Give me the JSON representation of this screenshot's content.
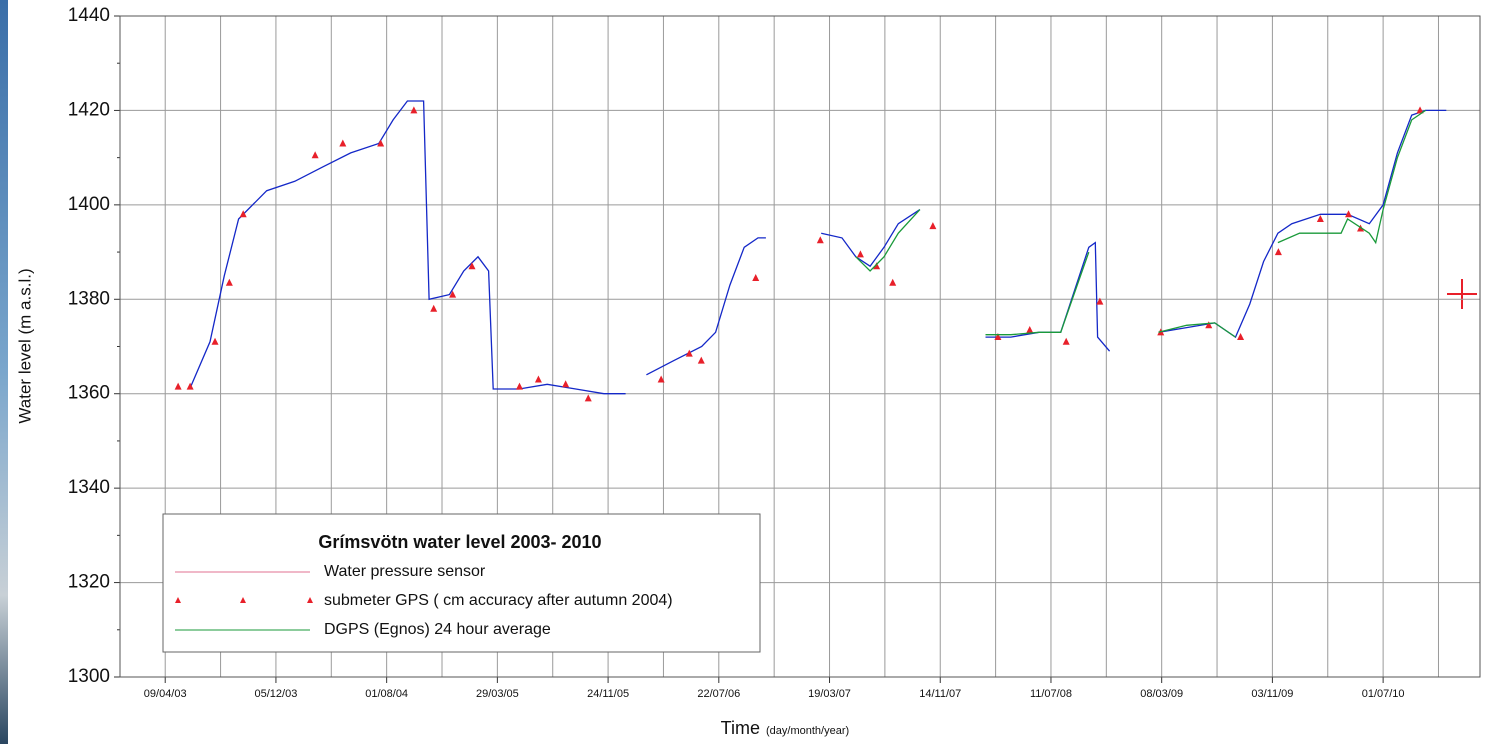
{
  "chart_data": {
    "type": "line",
    "y_label": "Water level (m a.s.l.)",
    "x_label": "Time",
    "x_label_note": "(day/month/year)",
    "legend_title": "Grímsvötn water level 2003- 2010",
    "ylim": [
      1300,
      1440
    ],
    "yticks": [
      1300,
      1320,
      1340,
      1360,
      1380,
      1400,
      1420,
      1440
    ],
    "xlim": [
      "01/01/03",
      "27/01/11"
    ],
    "xticks": [
      "09/04/03",
      "05/12/03",
      "01/08/04",
      "29/03/05",
      "24/11/05",
      "22/07/06",
      "19/03/07",
      "14/11/07",
      "11/07/08",
      "08/03/09",
      "03/11/09",
      "01/07/10"
    ],
    "grid": true,
    "series": [
      {
        "name": "Water pressure sensor",
        "kind": "line",
        "color": "#1428c8",
        "legend_color": "#e07090",
        "x": [
          "01/06/03",
          "15/07/03",
          "15/08/03",
          "15/09/03",
          "15/11/03",
          "15/01/04",
          "15/03/04",
          "15/05/04",
          "15/07/04",
          "15/08/04",
          "15/09/04",
          "20/10/04",
          "01/11/04",
          "15/12/04",
          "15/01/05",
          "15/02/05",
          "10/03/05",
          "20/03/05",
          "15/05/05",
          "15/07/05",
          "15/09/05",
          "15/11/05",
          "01/01/06",
          null,
          "15/02/06",
          "15/04/06",
          "15/06/06",
          "15/07/06",
          "15/08/06",
          "15/09/06",
          "15/10/06",
          "01/11/06",
          null,
          "01/03/07",
          "15/04/07",
          "15/05/07",
          "15/06/07",
          "15/07/07",
          "15/08/07",
          "01/10/07",
          null,
          "20/02/08",
          "15/04/08",
          "15/06/08",
          "01/08/08",
          "01/10/08",
          "15/10/08",
          "20/10/08",
          "15/11/08",
          null,
          "01/03/09",
          "01/05/09",
          "01/07/09",
          "15/08/09",
          "15/09/09",
          "15/10/09",
          "15/11/09",
          "15/12/09",
          "15/02/10",
          "15/04/10",
          "01/06/10",
          "01/07/10",
          "01/08/10",
          "01/09/10",
          "01/10/10",
          "15/11/10"
        ],
        "values": [
          1361,
          1371,
          1385,
          1397,
          1403,
          1405,
          1408,
          1411,
          1413,
          1418,
          1422,
          1422,
          1380,
          1381,
          1386,
          1389,
          1386,
          1361,
          1361,
          1362,
          1361,
          1360,
          1360,
          null,
          1364,
          1367,
          1370,
          1373,
          1383,
          1391,
          1393,
          1393,
          null,
          1394,
          1393,
          1389,
          1387,
          1391,
          1396,
          1399,
          null,
          1372,
          1372,
          1373,
          1373,
          1391,
          1392,
          1372,
          1369,
          null,
          1373,
          1374,
          1375,
          1372,
          1379,
          1388,
          1394,
          1396,
          1398,
          1398,
          1396,
          1400,
          1411,
          1419,
          1420,
          1420
        ]
      },
      {
        "name": "submeter GPS ( cm accuracy after autumn 2004)",
        "kind": "marker",
        "color": "#e8202a",
        "x": [
          "07/05/03",
          "02/06/03",
          "26/07/03",
          "26/08/03",
          "25/09/03",
          "28/02/04",
          "28/04/04",
          "19/07/04",
          "29/09/04",
          "11/11/04",
          "22/12/04",
          "02/02/05",
          "16/05/05",
          "26/06/05",
          "24/08/05",
          "12/10/05",
          "19/03/06",
          "19/05/06",
          "14/06/06",
          "10/10/06",
          "27/02/07",
          "25/05/07",
          "29/06/07",
          "03/08/07",
          "29/10/07",
          "18/03/08",
          "26/05/08",
          "13/08/08",
          "25/10/08",
          "06/03/09",
          "18/06/09",
          "26/08/09",
          "16/11/09",
          "15/02/10",
          "17/04/10",
          "13/05/10",
          "19/09/10"
        ],
        "values": [
          1361.5,
          1361.5,
          1371,
          1383.5,
          1398,
          1410.5,
          1413,
          1413,
          1420,
          1378,
          1381,
          1387,
          1361.5,
          1363,
          1362,
          1359,
          1363,
          1368.5,
          1367,
          1384.5,
          1392.5,
          1389.5,
          1387,
          1383.5,
          1395.5,
          1372,
          1373.5,
          1371,
          1379.5,
          1373,
          1374.5,
          1372,
          1390,
          1397,
          1398,
          1395,
          1420
        ]
      },
      {
        "name": "DGPS (Egnos) 24 hour average",
        "kind": "line",
        "color": "#1a9a3a",
        "x": [
          "15/05/07",
          "15/06/07",
          "15/07/07",
          "15/08/07",
          "01/10/07",
          null,
          "20/02/08",
          "15/04/08",
          "15/06/08",
          "01/08/08",
          "01/10/08",
          null,
          "01/03/09",
          "01/05/09",
          "01/07/09",
          "15/08/09",
          null,
          "15/11/09",
          "01/01/10",
          "01/04/10",
          "15/04/10",
          "01/06/10",
          "15/06/10",
          "01/07/10",
          "01/08/10",
          "01/09/10",
          "01/10/10"
        ],
        "values": [
          1389,
          1386,
          1389,
          1394,
          1399,
          null,
          1372.5,
          1372.5,
          1373,
          1373,
          1390,
          null,
          1373,
          1374.5,
          1375,
          1372,
          null,
          1392,
          1394,
          1394,
          1397,
          1394,
          1392,
          1399,
          1410,
          1418,
          1420
        ]
      }
    ]
  }
}
